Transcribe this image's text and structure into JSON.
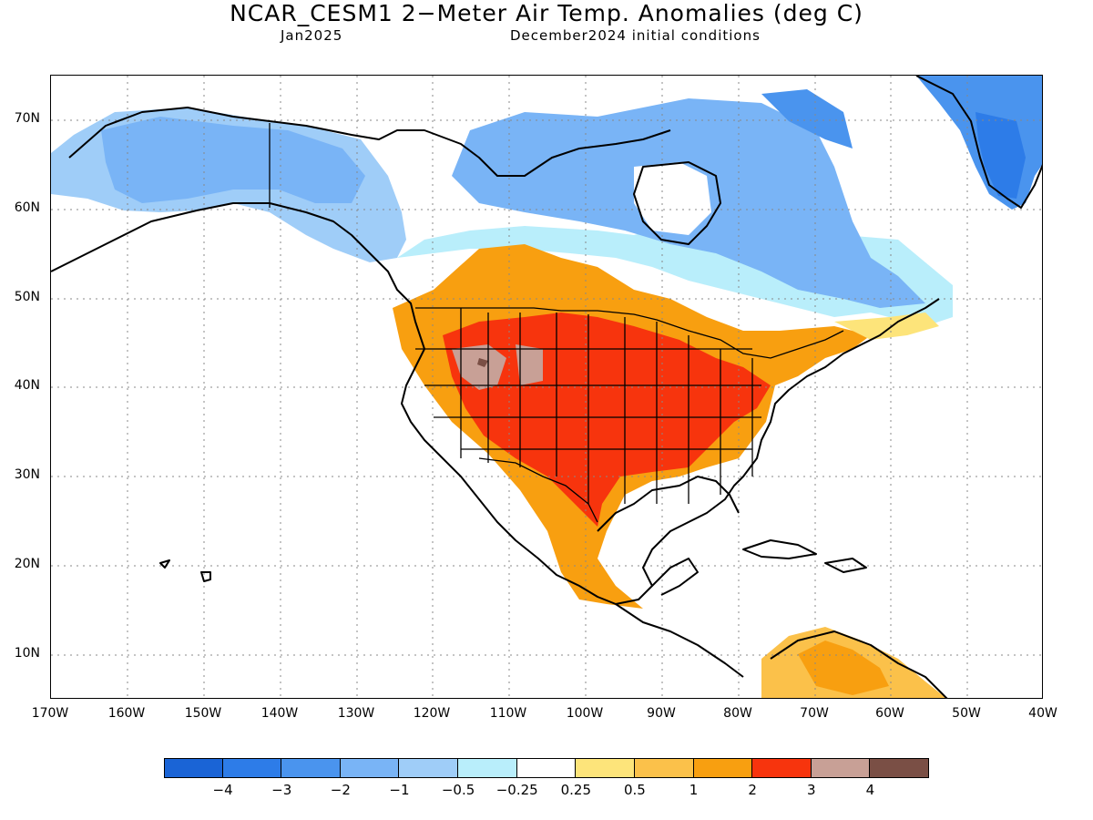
{
  "title": "NCAR_CESM1 2−Meter Air Temp. Anomalies (deg C)",
  "subtitle_left": "Jan2025",
  "subtitle_right": "December2024 initial conditions",
  "map": {
    "lat_labels": [
      "70N",
      "60N",
      "50N",
      "40N",
      "30N",
      "20N",
      "10N"
    ],
    "lon_labels": [
      "170W",
      "160W",
      "150W",
      "140W",
      "130W",
      "120W",
      "110W",
      "100W",
      "90W",
      "80W",
      "70W",
      "60W",
      "50W",
      "40W"
    ],
    "extent": {
      "lon_min": -170,
      "lon_max": -40,
      "lat_min": 5,
      "lat_max": 75
    }
  },
  "colorbar": {
    "colors": [
      "#1a64d6",
      "#2d7ce8",
      "#4a94ee",
      "#79b4f6",
      "#9fcdf8",
      "#b9eefb",
      "#ffffff",
      "#fde47a",
      "#fbc14a",
      "#f89f10",
      "#f7340d",
      "#c8a096",
      "#7a4f45"
    ],
    "labels": [
      "−4",
      "−3",
      "−2",
      "−1",
      "−0.5",
      "−0.25",
      "0.25",
      "0.5",
      "1",
      "2",
      "3",
      "4"
    ]
  }
}
